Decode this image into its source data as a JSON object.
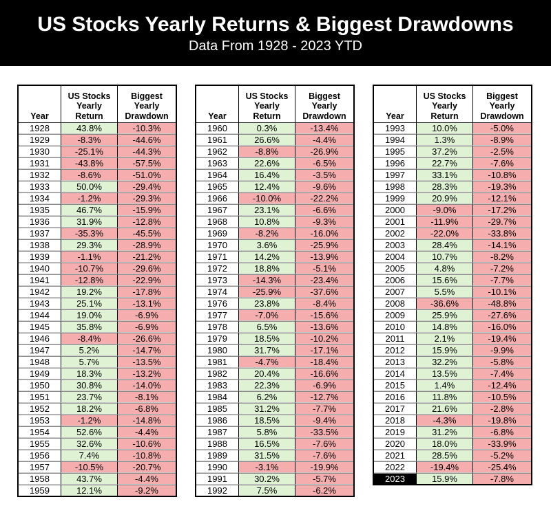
{
  "masthead": {
    "title": "US Stocks Yearly Returns & Biggest Drawdowns",
    "subtitle": "Data From 1928 - 2023 YTD"
  },
  "chart_data": {
    "type": "table",
    "title": "US Stocks Yearly Returns & Biggest Drawdowns",
    "subtitle": "Data From 1928 - 2023 YTD",
    "columns": [
      "Year",
      "US Stocks Yearly Return",
      "Biggest Yearly Drawdown"
    ],
    "column_lines": [
      [
        "Year"
      ],
      [
        "US Stocks",
        "Yearly",
        "Return"
      ],
      [
        "Biggest",
        "Yearly",
        "Drawdown"
      ]
    ],
    "highlight_years": [
      "2023"
    ],
    "colors": {
      "positive_bg": "#dff2d3",
      "negative_bg": "#f5adad",
      "banner_bg": "#000000",
      "banner_fg": "#ffffff",
      "highlight_cell_bg": "#000000",
      "highlight_cell_fg": "#ffffff"
    },
    "tables": [
      {
        "rows": [
          [
            "1928",
            "43.8%",
            "-10.3%"
          ],
          [
            "1929",
            "-8.3%",
            "-44.6%"
          ],
          [
            "1930",
            "-25.1%",
            "-44.3%"
          ],
          [
            "1931",
            "-43.8%",
            "-57.5%"
          ],
          [
            "1932",
            "-8.6%",
            "-51.0%"
          ],
          [
            "1933",
            "50.0%",
            "-29.4%"
          ],
          [
            "1934",
            "-1.2%",
            "-29.3%"
          ],
          [
            "1935",
            "46.7%",
            "-15.9%"
          ],
          [
            "1936",
            "31.9%",
            "-12.8%"
          ],
          [
            "1937",
            "-35.3%",
            "-45.5%"
          ],
          [
            "1938",
            "29.3%",
            "-28.9%"
          ],
          [
            "1939",
            "-1.1%",
            "-21.2%"
          ],
          [
            "1940",
            "-10.7%",
            "-29.6%"
          ],
          [
            "1941",
            "-12.8%",
            "-22.9%"
          ],
          [
            "1942",
            "19.2%",
            "-17.8%"
          ],
          [
            "1943",
            "25.1%",
            "-13.1%"
          ],
          [
            "1944",
            "19.0%",
            "-6.9%"
          ],
          [
            "1945",
            "35.8%",
            "-6.9%"
          ],
          [
            "1946",
            "-8.4%",
            "-26.6%"
          ],
          [
            "1947",
            "5.2%",
            "-14.7%"
          ],
          [
            "1948",
            "5.7%",
            "-13.5%"
          ],
          [
            "1949",
            "18.3%",
            "-13.2%"
          ],
          [
            "1950",
            "30.8%",
            "-14.0%"
          ],
          [
            "1951",
            "23.7%",
            "-8.1%"
          ],
          [
            "1952",
            "18.2%",
            "-6.8%"
          ],
          [
            "1953",
            "-1.2%",
            "-14.8%"
          ],
          [
            "1954",
            "52.6%",
            "-4.4%"
          ],
          [
            "1955",
            "32.6%",
            "-10.6%"
          ],
          [
            "1956",
            "7.4%",
            "-10.8%"
          ],
          [
            "1957",
            "-10.5%",
            "-20.7%"
          ],
          [
            "1958",
            "43.7%",
            "-4.4%"
          ],
          [
            "1959",
            "12.1%",
            "-9.2%"
          ]
        ]
      },
      {
        "rows": [
          [
            "1960",
            "0.3%",
            "-13.4%"
          ],
          [
            "1961",
            "26.6%",
            "-4.4%"
          ],
          [
            "1962",
            "-8.8%",
            "-26.9%"
          ],
          [
            "1963",
            "22.6%",
            "-6.5%"
          ],
          [
            "1964",
            "16.4%",
            "-3.5%"
          ],
          [
            "1965",
            "12.4%",
            "-9.6%"
          ],
          [
            "1966",
            "-10.0%",
            "-22.2%"
          ],
          [
            "1967",
            "23.1%",
            "-6.6%"
          ],
          [
            "1968",
            "10.8%",
            "-9.3%"
          ],
          [
            "1969",
            "-8.2%",
            "-16.0%"
          ],
          [
            "1970",
            "3.6%",
            "-25.9%"
          ],
          [
            "1971",
            "14.2%",
            "-13.9%"
          ],
          [
            "1972",
            "18.8%",
            "-5.1%"
          ],
          [
            "1973",
            "-14.3%",
            "-23.4%"
          ],
          [
            "1974",
            "-25.9%",
            "-37.6%"
          ],
          [
            "1976",
            "23.8%",
            "-8.4%"
          ],
          [
            "1977",
            "-7.0%",
            "-15.6%"
          ],
          [
            "1978",
            "6.5%",
            "-13.6%"
          ],
          [
            "1979",
            "18.5%",
            "-10.2%"
          ],
          [
            "1980",
            "31.7%",
            "-17.1%"
          ],
          [
            "1981",
            "-4.7%",
            "-18.4%"
          ],
          [
            "1982",
            "20.4%",
            "-16.6%"
          ],
          [
            "1983",
            "22.3%",
            "-6.9%"
          ],
          [
            "1984",
            "6.2%",
            "-12.7%"
          ],
          [
            "1985",
            "31.2%",
            "-7.7%"
          ],
          [
            "1986",
            "18.5%",
            "-9.4%"
          ],
          [
            "1987",
            "5.8%",
            "-33.5%"
          ],
          [
            "1988",
            "16.5%",
            "-7.6%"
          ],
          [
            "1989",
            "31.5%",
            "-7.6%"
          ],
          [
            "1990",
            "-3.1%",
            "-19.9%"
          ],
          [
            "1991",
            "30.2%",
            "-5.7%"
          ],
          [
            "1992",
            "7.5%",
            "-6.2%"
          ]
        ]
      },
      {
        "rows": [
          [
            "1993",
            "10.0%",
            "-5.0%"
          ],
          [
            "1994",
            "1.3%",
            "-8.9%"
          ],
          [
            "1995",
            "37.2%",
            "-2.5%"
          ],
          [
            "1996",
            "22.7%",
            "-7.6%"
          ],
          [
            "1997",
            "33.1%",
            "-10.8%"
          ],
          [
            "1998",
            "28.3%",
            "-19.3%"
          ],
          [
            "1999",
            "20.9%",
            "-12.1%"
          ],
          [
            "2000",
            "-9.0%",
            "-17.2%"
          ],
          [
            "2001",
            "-11.9%",
            "-29.7%"
          ],
          [
            "2002",
            "-22.0%",
            "-33.8%"
          ],
          [
            "2003",
            "28.4%",
            "-14.1%"
          ],
          [
            "2004",
            "10.7%",
            "-8.2%"
          ],
          [
            "2005",
            "4.8%",
            "-7.2%"
          ],
          [
            "2006",
            "15.6%",
            "-7.7%"
          ],
          [
            "2007",
            "5.5%",
            "-10.1%"
          ],
          [
            "2008",
            "-36.6%",
            "-48.8%"
          ],
          [
            "2009",
            "25.9%",
            "-27.6%"
          ],
          [
            "2010",
            "14.8%",
            "-16.0%"
          ],
          [
            "2011",
            "2.1%",
            "-19.4%"
          ],
          [
            "2012",
            "15.9%",
            "-9.9%"
          ],
          [
            "2013",
            "32.2%",
            "-5.8%"
          ],
          [
            "2014",
            "13.5%",
            "-7.4%"
          ],
          [
            "2015",
            "1.4%",
            "-12.4%"
          ],
          [
            "2016",
            "11.8%",
            "-10.5%"
          ],
          [
            "2017",
            "21.6%",
            "-2.8%"
          ],
          [
            "2018",
            "-4.3%",
            "-19.8%"
          ],
          [
            "2019",
            "31.2%",
            "-6.8%"
          ],
          [
            "2020",
            "18.0%",
            "-33.9%"
          ],
          [
            "2021",
            "28.5%",
            "-5.2%"
          ],
          [
            "2022",
            "-19.4%",
            "-25.4%"
          ],
          [
            "2023",
            "15.9%",
            "-7.8%"
          ]
        ]
      }
    ]
  }
}
